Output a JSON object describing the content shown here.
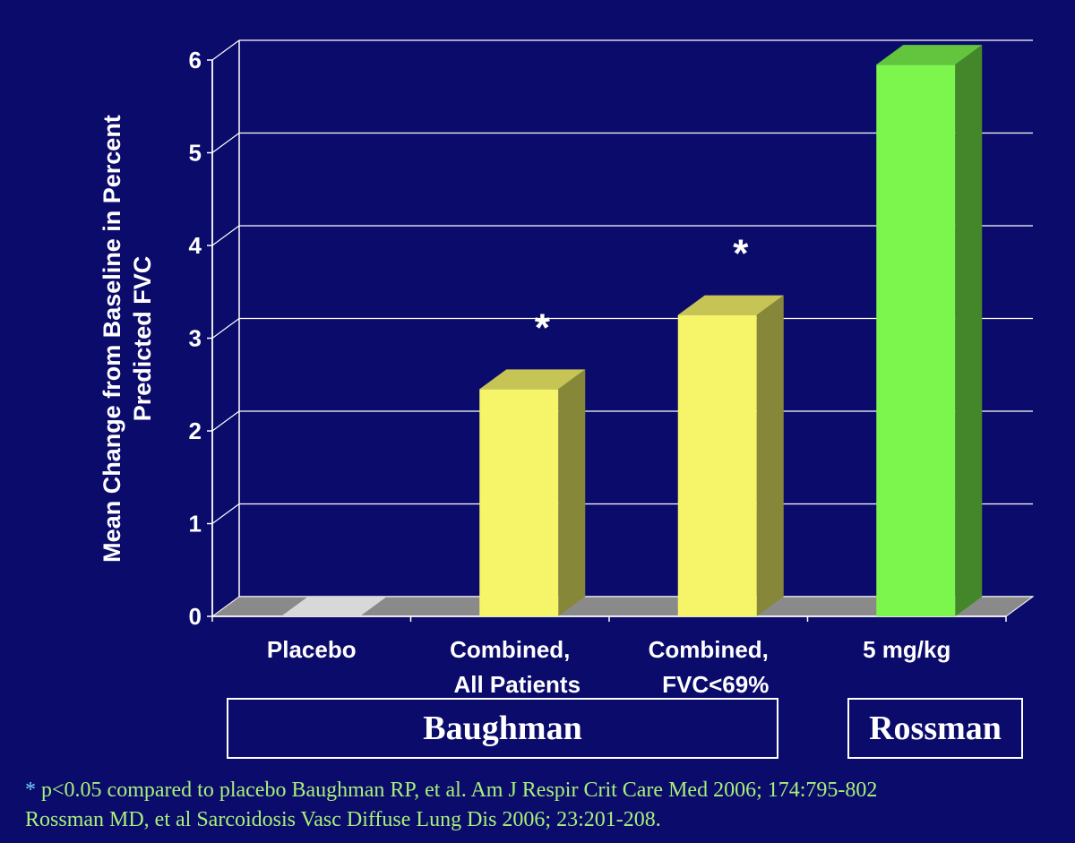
{
  "chart_data": {
    "type": "bar",
    "ylabel": "Mean Change from Baseline in Percent Predicted FVC",
    "ylabel_lines": [
      "Mean Change from Baseline in Percent",
      "Predicted FVC"
    ],
    "ylim": [
      0,
      6
    ],
    "yticks": [
      "0",
      "1",
      "2",
      "3",
      "4",
      "5",
      "6"
    ],
    "grid": true,
    "categories": [
      {
        "line1": "Placebo",
        "line2": ""
      },
      {
        "line1": "Combined,",
        "line2": "All Patients"
      },
      {
        "line1": "Combined,",
        "line2": "FVC<69%"
      },
      {
        "line1": "5 mg/kg",
        "line2": ""
      }
    ],
    "values": [
      0,
      2.45,
      3.25,
      5.95
    ],
    "significance_marks": [
      "",
      "*",
      "*",
      ""
    ],
    "bar_colors": [
      "#d8d8d8",
      "#f6f56a",
      "#f6f56a",
      "#7cf54d"
    ],
    "groups": [
      {
        "label": "Baughman",
        "categories": [
          0,
          1,
          2
        ]
      },
      {
        "label": "Rossman",
        "categories": [
          3
        ]
      }
    ]
  },
  "footnote": {
    "star": "*",
    "line1": " p<0.05 compared to placebo Baughman RP, et al. Am J Respir Crit Care Med 2006; 174:795-802",
    "line2": "Rossman MD, et al Sarcoidosis Vasc Diffuse Lung Dis 2006; 23:201-208."
  }
}
